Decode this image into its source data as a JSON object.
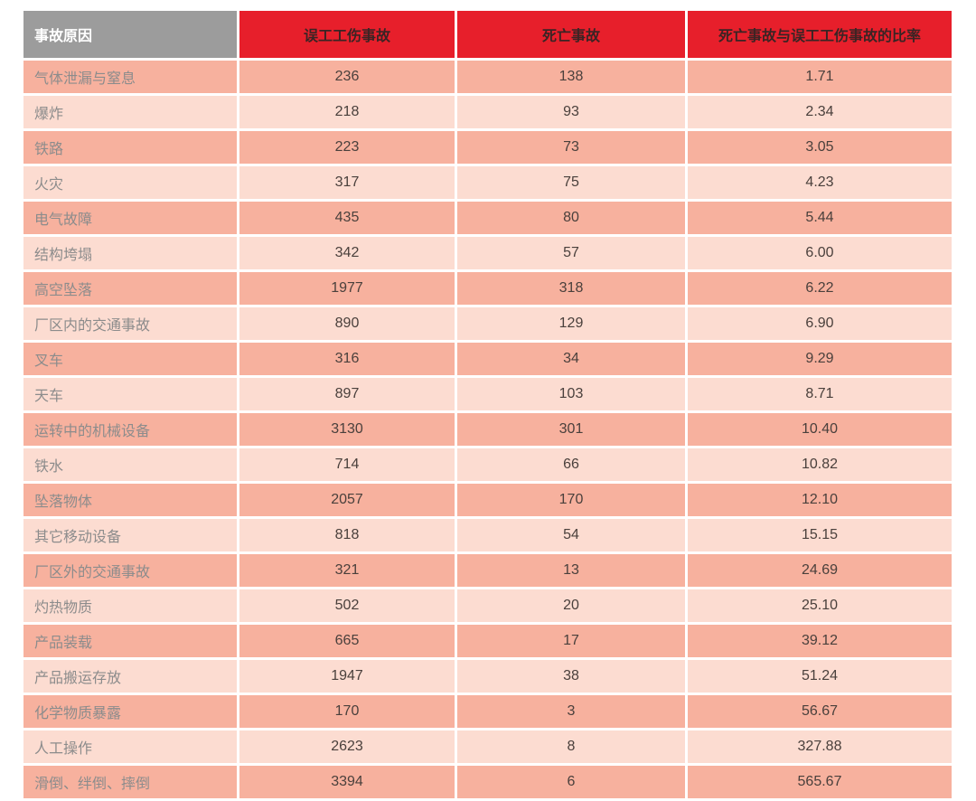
{
  "colors": {
    "gray-header-bg": "#9c9c9c",
    "gray-header-text": "#ffffff",
    "red-header-bg": "#e71f2b",
    "red-header-text": "#3a2424",
    "row-odd-bg": "#f7b19e",
    "row-even-bg": "#fcdcd1",
    "row-label-text": "#8c8c8c",
    "row-number-text": "#4a403c"
  },
  "table": {
    "columns": [
      {
        "label": "事故原因"
      },
      {
        "label": "误工工伤事故"
      },
      {
        "label": "死亡事故"
      },
      {
        "label": "死亡事故与误工工伤事故的比率"
      }
    ],
    "rows": [
      {
        "cause": "气体泄漏与窒息",
        "injuries": "236",
        "deaths": "138",
        "ratio": "1.71"
      },
      {
        "cause": "爆炸",
        "injuries": "218",
        "deaths": "93",
        "ratio": "2.34"
      },
      {
        "cause": "铁路",
        "injuries": "223",
        "deaths": "73",
        "ratio": "3.05"
      },
      {
        "cause": "火灾",
        "injuries": "317",
        "deaths": "75",
        "ratio": "4.23"
      },
      {
        "cause": "电气故障",
        "injuries": "435",
        "deaths": "80",
        "ratio": "5.44"
      },
      {
        "cause": "结构垮塌",
        "injuries": "342",
        "deaths": "57",
        "ratio": "6.00"
      },
      {
        "cause": "高空坠落",
        "injuries": "1977",
        "deaths": "318",
        "ratio": "6.22"
      },
      {
        "cause": "厂区内的交通事故",
        "injuries": "890",
        "deaths": "129",
        "ratio": "6.90"
      },
      {
        "cause": "叉车",
        "injuries": "316",
        "deaths": "34",
        "ratio": "9.29"
      },
      {
        "cause": "天车",
        "injuries": "897",
        "deaths": "103",
        "ratio": "8.71"
      },
      {
        "cause": "运转中的机械设备",
        "injuries": "3130",
        "deaths": "301",
        "ratio": "10.40"
      },
      {
        "cause": "铁水",
        "injuries": "714",
        "deaths": "66",
        "ratio": "10.82"
      },
      {
        "cause": "坠落物体",
        "injuries": "2057",
        "deaths": "170",
        "ratio": "12.10"
      },
      {
        "cause": "其它移动设备",
        "injuries": "818",
        "deaths": "54",
        "ratio": "15.15"
      },
      {
        "cause": "厂区外的交通事故",
        "injuries": "321",
        "deaths": "13",
        "ratio": "24.69"
      },
      {
        "cause": "灼热物质",
        "injuries": "502",
        "deaths": "20",
        "ratio": "25.10"
      },
      {
        "cause": "产品装载",
        "injuries": "665",
        "deaths": "17",
        "ratio": "39.12"
      },
      {
        "cause": "产品搬运存放",
        "injuries": "1947",
        "deaths": "38",
        "ratio": "51.24"
      },
      {
        "cause": "化学物质暴露",
        "injuries": "170",
        "deaths": "3",
        "ratio": "56.67"
      },
      {
        "cause": "人工操作",
        "injuries": "2623",
        "deaths": "8",
        "ratio": "327.88"
      },
      {
        "cause": "滑倒、绊倒、摔倒",
        "injuries": "3394",
        "deaths": "6",
        "ratio": "565.67"
      }
    ]
  },
  "chart_data": {
    "type": "table",
    "title": "",
    "columns": [
      "事故原因",
      "误工工伤事故",
      "死亡事故",
      "死亡事故与误工工伤事故的比率"
    ],
    "rows": [
      [
        "气体泄漏与窒息",
        236,
        138,
        1.71
      ],
      [
        "爆炸",
        218,
        93,
        2.34
      ],
      [
        "铁路",
        223,
        73,
        3.05
      ],
      [
        "火灾",
        317,
        75,
        4.23
      ],
      [
        "电气故障",
        435,
        80,
        5.44
      ],
      [
        "结构垮塌",
        342,
        57,
        6.0
      ],
      [
        "高空坠落",
        1977,
        318,
        6.22
      ],
      [
        "厂区内的交通事故",
        890,
        129,
        6.9
      ],
      [
        "叉车",
        316,
        34,
        9.29
      ],
      [
        "天车",
        897,
        103,
        8.71
      ],
      [
        "运转中的机械设备",
        3130,
        301,
        10.4
      ],
      [
        "铁水",
        714,
        66,
        10.82
      ],
      [
        "坠落物体",
        2057,
        170,
        12.1
      ],
      [
        "其它移动设备",
        818,
        54,
        15.15
      ],
      [
        "厂区外的交通事故",
        321,
        13,
        24.69
      ],
      [
        "灼热物质",
        502,
        20,
        25.1
      ],
      [
        "产品装载",
        665,
        17,
        39.12
      ],
      [
        "产品搬运存放",
        1947,
        38,
        51.24
      ],
      [
        "化学物质暴露",
        170,
        3,
        56.67
      ],
      [
        "人工操作",
        2623,
        8,
        327.88
      ],
      [
        "滑倒、绊倒、摔倒",
        3394,
        6,
        565.67
      ]
    ]
  }
}
